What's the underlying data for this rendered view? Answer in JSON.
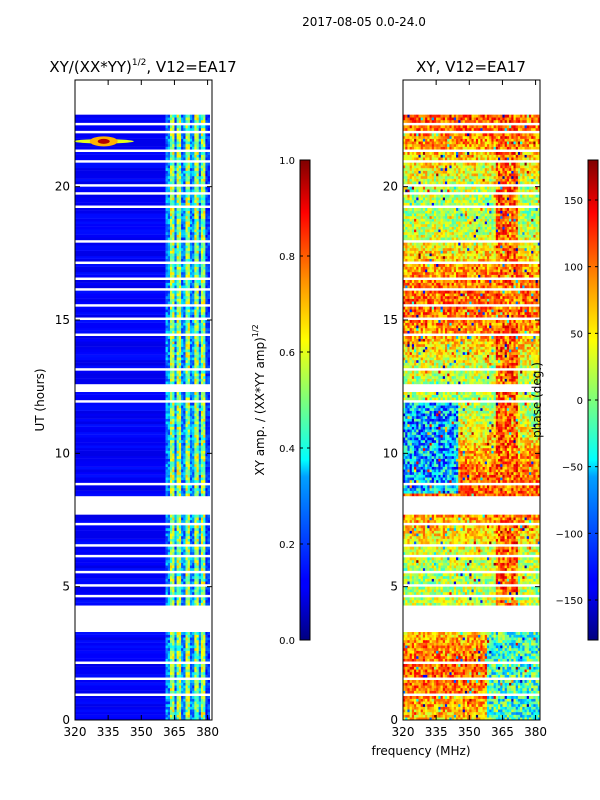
{
  "figure_title": "2017-08-05 0.0-24.0",
  "shared_xlabel": "frequency (MHz)",
  "chart_data": [
    {
      "type": "heatmap",
      "id": "amp",
      "title_main": "XY/(XX*YY)",
      "title_exp": "1/2",
      "title_rest": ", V12=EA17",
      "ylabel": "UT (hours)",
      "xlim": [
        320,
        382
      ],
      "ylim": [
        0,
        24
      ],
      "xticks": [
        "320",
        "335",
        "350",
        "365",
        "380"
      ],
      "xtick_values": [
        320,
        335,
        350,
        365,
        380
      ],
      "yticks": [
        "0",
        "5",
        "10",
        "15",
        "20"
      ],
      "ytick_values": [
        0,
        5,
        10,
        15,
        20
      ],
      "data_hours": [
        0,
        22.7
      ],
      "active_freq_range": [
        361,
        379
      ],
      "bright_channels_mhz": [
        364,
        367,
        371,
        375,
        378
      ],
      "colorbar": {
        "label_main": "XY amp. / (XX*YY amp)",
        "label_exp": "1/2",
        "range": [
          0.0,
          1.0
        ],
        "ticks": [
          "0.0",
          "0.2",
          "0.4",
          "0.6",
          "0.8",
          "1.0"
        ],
        "tick_values": [
          0.0,
          0.2,
          0.4,
          0.6,
          0.8,
          1.0
        ]
      }
    },
    {
      "type": "heatmap",
      "id": "phase",
      "title": "XY, V12=EA17",
      "xlim": [
        320,
        382
      ],
      "ylim": [
        0,
        24
      ],
      "xticks": [
        "320",
        "335",
        "350",
        "365",
        "380"
      ],
      "xtick_values": [
        320,
        335,
        350,
        365,
        380
      ],
      "yticks": [
        "0",
        "5",
        "10",
        "15",
        "20"
      ],
      "ytick_values": [
        0,
        5,
        10,
        15,
        20
      ],
      "data_hours": [
        0,
        22.7
      ],
      "colorbar": {
        "label": "phase (deg.)",
        "range": [
          -180,
          180
        ],
        "ticks": [
          "−150",
          "−100",
          "−50",
          "0",
          "50",
          "100",
          "150"
        ],
        "tick_values": [
          -150,
          -100,
          -50,
          0,
          50,
          100,
          150
        ]
      }
    }
  ],
  "gaps_hours": [
    [
      3.35,
      4.3
    ],
    [
      7.75,
      8.35
    ],
    [
      12.3,
      12.62
    ],
    [
      0.95,
      1.0
    ],
    [
      1.55,
      1.6
    ],
    [
      2.15,
      2.2
    ],
    [
      4.62,
      4.67
    ],
    [
      5.05,
      5.1
    ],
    [
      5.5,
      5.55
    ],
    [
      6.12,
      6.17
    ],
    [
      6.5,
      6.55
    ],
    [
      7.1,
      7.14
    ],
    [
      7.35,
      7.4
    ],
    [
      8.85,
      8.9
    ],
    [
      11.95,
      12.0
    ],
    [
      13.1,
      13.15
    ],
    [
      14.45,
      14.5
    ],
    [
      15.05,
      15.1
    ],
    [
      15.55,
      15.6
    ],
    [
      16.1,
      16.15
    ],
    [
      16.52,
      16.57
    ],
    [
      17.15,
      17.2
    ],
    [
      17.9,
      17.95
    ],
    [
      19.2,
      19.25
    ],
    [
      19.75,
      19.8
    ],
    [
      20.05,
      20.1
    ],
    [
      20.9,
      20.95
    ],
    [
      21.3,
      21.35
    ],
    [
      22.0,
      22.05
    ],
    [
      22.3,
      22.35
    ]
  ]
}
